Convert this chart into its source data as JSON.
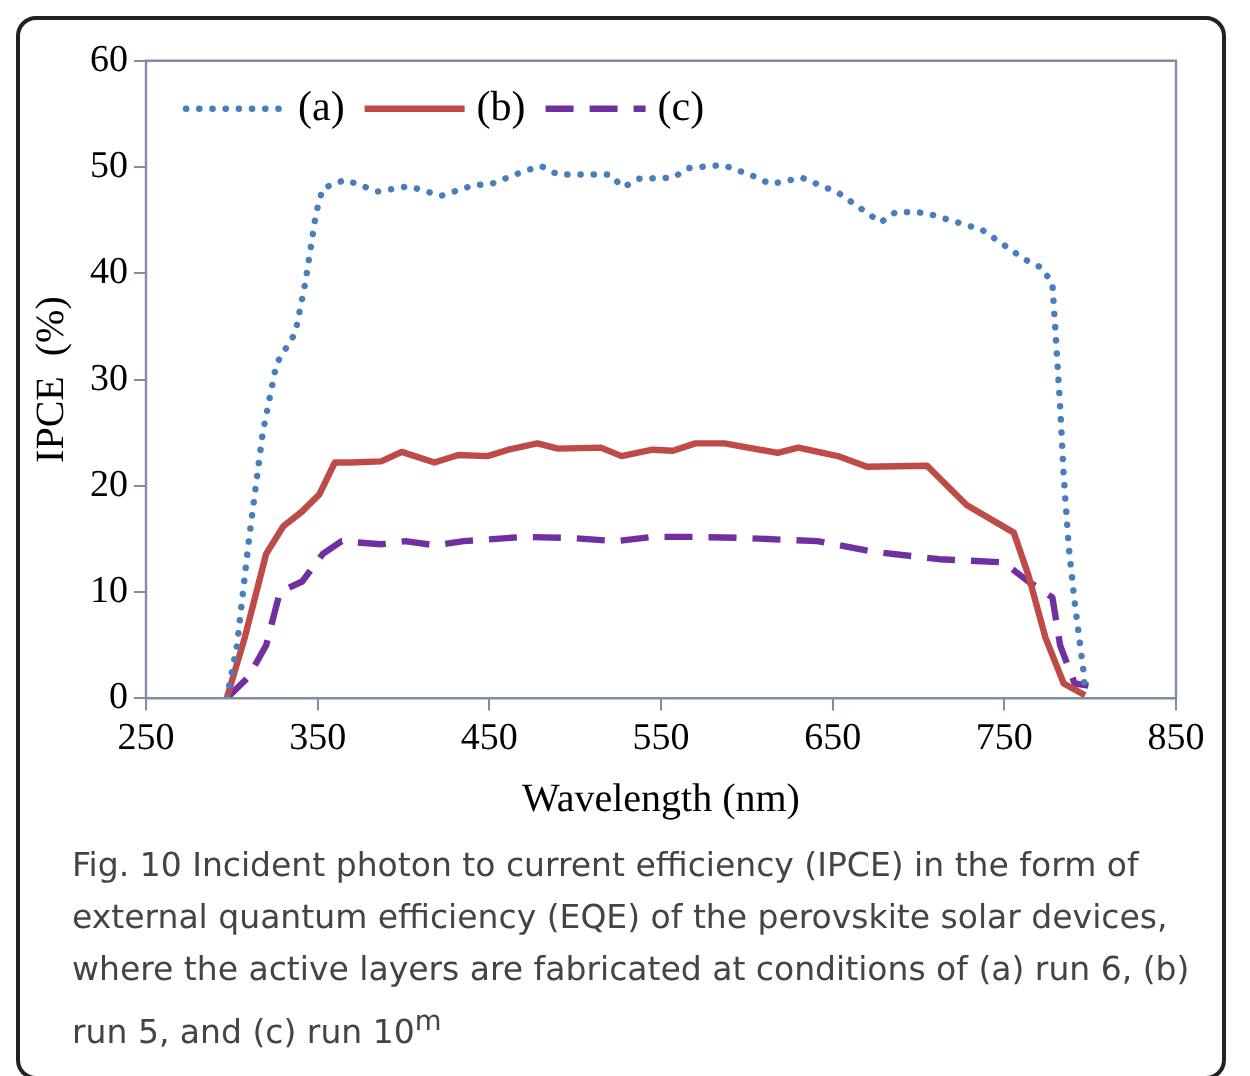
{
  "chart_data": {
    "type": "line",
    "xlabel": "Wavelength (nm)",
    "ylabel": "IPCE  (%)",
    "xlim": [
      250,
      850
    ],
    "xticks": [
      250,
      350,
      450,
      550,
      650,
      750,
      850
    ],
    "ylim": [
      0,
      60
    ],
    "yticks": [
      0,
      10,
      20,
      30,
      40,
      50,
      60
    ],
    "grid": false,
    "legend": "top left",
    "marker": "none",
    "series": [
      {
        "name": "(a)",
        "color": "#4a7ebb",
        "line_style": "dotted",
        "x": [
          297,
          303,
          310,
          318,
          326,
          337,
          343,
          349,
          353,
          366,
          385,
          403,
          422,
          441,
          451,
          470,
          480,
          490,
          520,
          528,
          537,
          557,
          566,
          586,
          603,
          614,
          632,
          653,
          678,
          687,
          704,
          737,
          762,
          772,
          778,
          780,
          782.5,
          784.6,
          787.5,
          791,
          796,
          797
        ],
        "values": [
          0,
          5,
          15,
          25,
          31.5,
          34.4,
          39.3,
          45.6,
          48,
          48.8,
          47.7,
          48.2,
          47.3,
          48.3,
          48.4,
          49.6,
          50.1,
          49.3,
          49.3,
          48.1,
          48.9,
          49,
          49.9,
          50.2,
          49.2,
          48.4,
          49,
          47.6,
          44.8,
          45.8,
          45.7,
          44.1,
          41.3,
          40.5,
          39,
          34,
          27.5,
          20.9,
          14.3,
          9,
          2.7,
          0.6
        ]
      },
      {
        "name": "(b)",
        "color": "#be4b48",
        "line_style": "solid",
        "x": [
          297,
          307.5,
          320,
          330,
          341,
          351,
          360,
          369,
          387,
          399,
          418,
          432,
          449,
          461,
          478,
          490,
          515,
          527,
          545,
          557,
          570,
          587,
          618,
          630,
          653,
          670,
          705,
          728,
          755.5,
          764,
          774,
          784.6,
          797
        ],
        "values": [
          0,
          5.7,
          13.6,
          16.2,
          17.6,
          19.2,
          22.2,
          22.2,
          22.3,
          23.2,
          22.2,
          22.9,
          22.8,
          23.4,
          24,
          23.5,
          23.6,
          22.8,
          23.4,
          23.3,
          24,
          24,
          23.1,
          23.6,
          22.8,
          21.8,
          21.9,
          18.2,
          15.6,
          11.6,
          5.7,
          1.4,
          0.3
        ]
      },
      {
        "name": "(c)",
        "color": "#7030a0",
        "line_style": "dashed",
        "x": [
          297,
          309.6,
          320,
          328,
          341,
          353,
          364,
          387,
          401,
          419,
          435,
          470,
          497,
          524,
          545,
          570,
          597,
          641,
          674,
          712,
          749.6,
          764,
          778,
          782.5,
          791,
          799
        ],
        "values": [
          0,
          2,
          5,
          10,
          11,
          13.6,
          14.8,
          14.5,
          14.8,
          14.4,
          14.8,
          15.2,
          15.1,
          14.8,
          15.2,
          15.2,
          15.1,
          14.8,
          13.8,
          13.1,
          12.8,
          11,
          9.5,
          5,
          1.4,
          1.2
        ]
      }
    ],
    "annotations": [
      "Fig. 10 Incident photon to current efficiency (IPCE) in the form of external quantum efficiency (EQE) of the perovskite solar devices, where the active layers are fabricated at conditions of (a) run 6, (b) run 5, and (c) run 10$^{m}$"
    ]
  }
}
